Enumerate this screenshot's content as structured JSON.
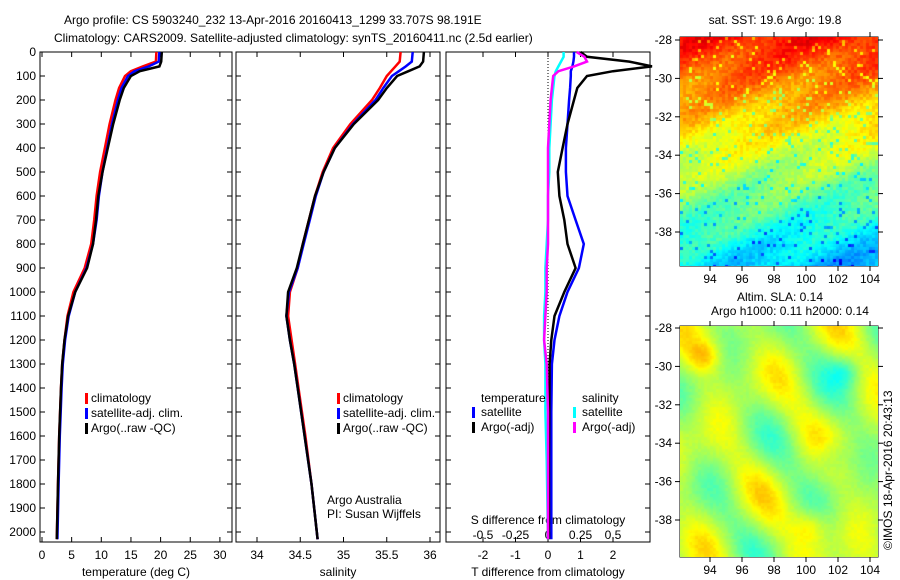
{
  "header": {
    "title_line1": "Argo profile: CS 5903240_232 13-Apr-2016 20160413_1299 33.707S 98.191E",
    "title_line2": "Climatology: CARS2009. Satellite-adjusted climatology: synTS_20160411.nc (2.5d earlier)"
  },
  "credits": {
    "line1": "Argo Australia",
    "line2": "PI: Susan Wijffels",
    "copyright": "©IMOS 18-Apr-2016 20:43:13"
  },
  "colors": {
    "climatology": "#ff0000",
    "satellite": "#0000ff",
    "argo": "#000000",
    "sal_satellite": "#00ffff",
    "sal_argo": "#ff00ff"
  },
  "chart_data": [
    {
      "type": "line",
      "title": "",
      "xlabel": "temperature (deg C)",
      "ylabel": "",
      "xlim": [
        -0.3,
        32
      ],
      "ylim": [
        2040,
        0
      ],
      "xticks": [
        0,
        5,
        10,
        15,
        20,
        25,
        30
      ],
      "yticks": [
        0,
        100,
        200,
        300,
        400,
        500,
        600,
        700,
        800,
        900,
        1000,
        1100,
        1200,
        1300,
        1400,
        1500,
        1600,
        1700,
        1800,
        1900,
        2000
      ],
      "legend": [
        "climatology",
        "satellite-adj. clim.",
        "Argo(..raw -QC)"
      ],
      "legend_placement": "lower-center",
      "depth": [
        0,
        40,
        60,
        80,
        100,
        150,
        200,
        300,
        400,
        500,
        600,
        700,
        800,
        900,
        1000,
        1100,
        1200,
        1300,
        1400,
        1600,
        1800,
        2030
      ],
      "series": [
        {
          "name": "climatology",
          "values": [
            19.3,
            19.2,
            17.0,
            15.0,
            14.0,
            13.0,
            12.4,
            11.4,
            10.6,
            9.8,
            9.2,
            8.8,
            8.3,
            7.2,
            5.3,
            4.3,
            3.8,
            3.4,
            3.2,
            2.9,
            2.7,
            2.5
          ]
        },
        {
          "name": "satellite-adj. clim.",
          "values": [
            19.8,
            19.7,
            18.0,
            15.6,
            14.5,
            13.4,
            12.8,
            11.8,
            11.0,
            10.2,
            9.6,
            9.2,
            8.6,
            7.5,
            5.6,
            4.5,
            3.9,
            3.5,
            3.3,
            3.0,
            2.8,
            2.6
          ]
        },
        {
          "name": "Argo(..raw -QC)",
          "values": [
            20.2,
            20.1,
            19.8,
            16.5,
            15.0,
            13.8,
            13.1,
            12.0,
            11.1,
            10.2,
            9.5,
            9.1,
            8.6,
            7.6,
            5.6,
            4.4,
            3.8,
            3.4,
            3.2,
            2.9,
            2.7,
            2.5
          ]
        }
      ]
    },
    {
      "type": "line",
      "xlabel": "salinity",
      "xlim": [
        33.76,
        36.1
      ],
      "ylim": [
        2040,
        0
      ],
      "xticks": [
        34,
        34.5,
        35,
        35.5,
        36
      ],
      "legend": [
        "climatology",
        "satellite-adj. clim.",
        "Argo(..raw -QC)"
      ],
      "depth": [
        0,
        40,
        60,
        80,
        100,
        150,
        200,
        300,
        400,
        500,
        600,
        700,
        800,
        900,
        1000,
        1100,
        1200,
        1300,
        1400,
        1600,
        1800,
        2030
      ],
      "series": [
        {
          "name": "climatology",
          "values": [
            35.66,
            35.65,
            35.6,
            35.55,
            35.5,
            35.42,
            35.33,
            35.08,
            34.88,
            34.76,
            34.67,
            34.6,
            34.53,
            34.47,
            34.38,
            34.36,
            34.4,
            34.44,
            34.48,
            34.56,
            34.63,
            34.7
          ]
        },
        {
          "name": "satellite-adj. clim.",
          "values": [
            35.8,
            35.79,
            35.72,
            35.64,
            35.56,
            35.46,
            35.37,
            35.11,
            34.9,
            34.77,
            34.68,
            34.61,
            34.54,
            34.47,
            34.37,
            34.34,
            34.38,
            34.43,
            34.47,
            34.55,
            34.63,
            34.7
          ]
        },
        {
          "name": "Argo(..raw -QC)",
          "values": [
            35.93,
            35.92,
            35.88,
            35.75,
            35.62,
            35.5,
            35.4,
            35.12,
            34.9,
            34.77,
            34.67,
            34.6,
            34.53,
            34.46,
            34.36,
            34.34,
            34.38,
            34.43,
            34.47,
            34.55,
            34.63,
            34.7
          ]
        }
      ]
    },
    {
      "type": "line",
      "xlabel": "T difference from climatology",
      "x2label": "S difference from climatology",
      "xlim": [
        -3.1,
        3.2
      ],
      "x2lim": [
        -0.77,
        0.8
      ],
      "ylim": [
        2040,
        0
      ],
      "xticks": [
        -2,
        -1,
        0,
        1,
        2
      ],
      "x2ticks": [
        -0.5,
        -0.25,
        0,
        0.25,
        0.5
      ],
      "legend_titles": [
        "temperature",
        "salinity"
      ],
      "legend": [
        "satellite",
        "Argo(-adj)",
        "satellite",
        "Argo(-adj)"
      ],
      "depth": [
        0,
        20,
        40,
        60,
        80,
        100,
        150,
        200,
        300,
        400,
        500,
        600,
        700,
        800,
        900,
        1000,
        1100,
        1200,
        1300,
        1500,
        1700,
        2030
      ],
      "series": [
        {
          "name": "T satellite",
          "values": [
            0.8,
            0.8,
            0.78,
            0.75,
            0.7,
            0.7,
            0.68,
            0.65,
            0.6,
            0.55,
            0.55,
            0.6,
            0.85,
            1.1,
            0.95,
            0.6,
            0.35,
            0.2,
            0.12,
            0.1,
            0.1,
            0.1
          ]
        },
        {
          "name": "T Argo(-adj)",
          "values": [
            1.0,
            1.2,
            2.5,
            3.2,
            2.0,
            1.2,
            0.9,
            0.8,
            0.6,
            0.45,
            0.3,
            0.35,
            0.5,
            0.6,
            0.85,
            0.5,
            0.2,
            0.1,
            0.05,
            0.04,
            0.03,
            0.03
          ]
        },
        {
          "name": "S satellite",
          "values": [
            0.12,
            0.12,
            0.1,
            0.08,
            0.06,
            0.05,
            0.04,
            0.03,
            0.02,
            0.01,
            0.01,
            0.0,
            0.0,
            -0.01,
            -0.02,
            -0.02,
            -0.03,
            -0.03,
            -0.02,
            -0.02,
            -0.01,
            0.0
          ]
        },
        {
          "name": "S Argo(-adj)",
          "values": [
            0.22,
            0.28,
            0.3,
            0.2,
            0.08,
            0.04,
            0.03,
            0.02,
            0.01,
            0.0,
            0.0,
            0.0,
            0.0,
            0.0,
            -0.01,
            -0.01,
            -0.02,
            -0.03,
            -0.01,
            0.0,
            0.0,
            0.0
          ]
        }
      ]
    },
    {
      "type": "heatmap",
      "title": "sat. SST: 19.6 Argo: 19.8",
      "xlim": [
        92.1,
        104.5
      ],
      "ylim": [
        -39.8,
        -27.8
      ],
      "xticks": [
        94,
        96,
        98,
        100,
        102,
        104
      ],
      "yticks": [
        -28,
        -30,
        -32,
        -34,
        -36,
        -38
      ],
      "colormap": "jet"
    },
    {
      "type": "heatmap",
      "title": "Altim. SLA: 0.14",
      "subtitle": "Argo h1000: 0.11 h2000: 0.14",
      "xlim": [
        92.1,
        104.5
      ],
      "ylim": [
        -39.8,
        -27.8
      ],
      "xticks": [
        94,
        96,
        98,
        100,
        102,
        104
      ],
      "yticks": [
        -28,
        -30,
        -32,
        -34,
        -36,
        -38
      ],
      "colormap": "jet"
    }
  ]
}
